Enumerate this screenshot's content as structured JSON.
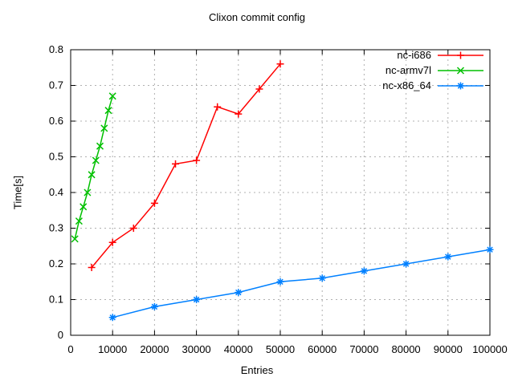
{
  "chart_data": {
    "type": "line",
    "title": "Clixon commit config",
    "xlabel": "Entries",
    "ylabel": "Time[s]",
    "xlim": [
      0,
      100000
    ],
    "ylim": [
      0,
      0.8
    ],
    "grid": true,
    "legend_position": "top-right-inside",
    "background_color": "#ffffff",
    "grid_color": "#b0b0b0",
    "frame_color": "#000000",
    "xticks": [
      0,
      10000,
      20000,
      30000,
      40000,
      50000,
      60000,
      70000,
      80000,
      90000,
      100000
    ],
    "xtick_labels": [
      "0",
      "10000",
      "20000",
      "30000",
      "40000",
      "50000",
      "60000",
      "70000",
      "80000",
      "90000",
      "100000"
    ],
    "yticks": [
      0,
      0.1,
      0.2,
      0.3,
      0.4,
      0.5,
      0.6,
      0.7,
      0.8
    ],
    "ytick_labels": [
      "0",
      "0.1",
      "0.2",
      "0.3",
      "0.4",
      "0.5",
      "0.6",
      "0.7",
      "0.8"
    ],
    "series": [
      {
        "name": "nc-i686",
        "color": "#ff0000",
        "marker": "plus",
        "x": [
          5000,
          10000,
          15000,
          20000,
          25000,
          30000,
          35000,
          40000,
          45000,
          50000
        ],
        "y": [
          0.19,
          0.26,
          0.3,
          0.37,
          0.48,
          0.49,
          0.64,
          0.62,
          0.69,
          0.76
        ]
      },
      {
        "name": "nc-armv7l",
        "color": "#00c000",
        "marker": "cross",
        "x": [
          1000,
          2000,
          3000,
          4000,
          5000,
          6000,
          7000,
          8000,
          9000,
          10000
        ],
        "y": [
          0.27,
          0.32,
          0.36,
          0.4,
          0.45,
          0.49,
          0.53,
          0.58,
          0.63,
          0.67
        ]
      },
      {
        "name": "nc-x86_64",
        "color": "#0080ff",
        "marker": "asterisk",
        "x": [
          10000,
          20000,
          30000,
          40000,
          50000,
          60000,
          70000,
          80000,
          90000,
          100000
        ],
        "y": [
          0.05,
          0.08,
          0.1,
          0.12,
          0.15,
          0.16,
          0.18,
          0.2,
          0.22,
          0.24
        ]
      }
    ]
  }
}
